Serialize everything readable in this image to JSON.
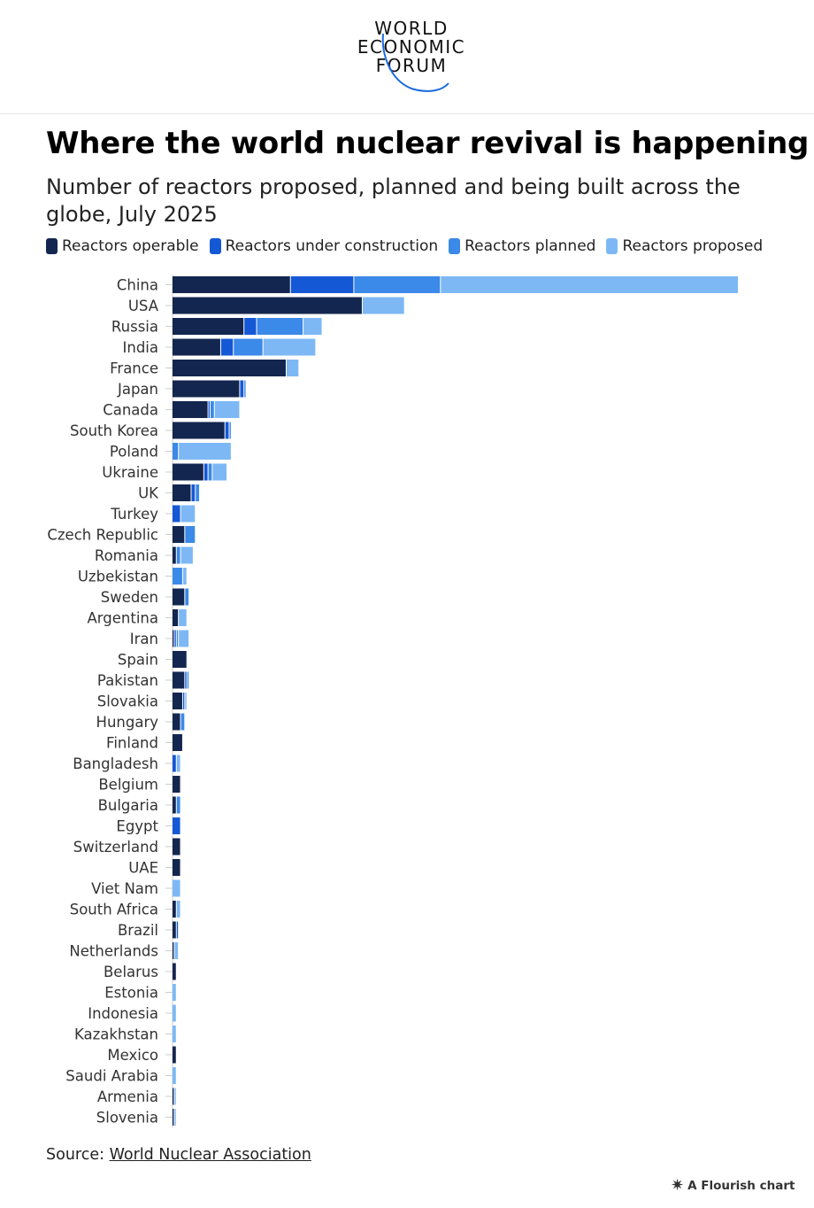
{
  "brand": {
    "line1": "WORLD",
    "line2": "ECONOMIC",
    "line3": "FORUM",
    "accent_color": "#1a6be0"
  },
  "title": "Where the world nuclear revival is happening",
  "subtitle": "Number of reactors proposed, planned and being built across the globe, July 2025",
  "source": {
    "prefix": "Source: ",
    "link_text": "World Nuclear Association"
  },
  "footer": {
    "flourish_label": "A Flourish chart"
  },
  "chart_data": {
    "type": "bar",
    "orientation": "horizontal",
    "stacked": true,
    "grid": false,
    "legend_position": "top",
    "xlim": [
      0,
      268
    ],
    "categories": [
      "China",
      "USA",
      "Russia",
      "India",
      "France",
      "Japan",
      "Canada",
      "South Korea",
      "Poland",
      "Ukraine",
      "UK",
      "Turkey",
      "Czech Republic",
      "Romania",
      "Uzbekistan",
      "Sweden",
      "Argentina",
      "Iran",
      "Spain",
      "Pakistan",
      "Slovakia",
      "Hungary",
      "Finland",
      "Bangladesh",
      "Belgium",
      "Bulgaria",
      "Egypt",
      "Switzerland",
      "UAE",
      "Viet Nam",
      "South Africa",
      "Brazil",
      "Netherlands",
      "Belarus",
      "Estonia",
      "Indonesia",
      "Kazakhstan",
      "Mexico",
      "Saudi Arabia",
      "Armenia",
      "Slovenia"
    ],
    "series": [
      {
        "name": "Reactors operable",
        "color": "#13264f",
        "values": [
          56,
          90,
          34,
          23,
          54,
          32,
          17,
          25,
          0,
          15,
          9,
          0,
          6,
          2,
          0,
          6,
          3,
          1,
          7,
          6,
          5,
          4,
          5,
          0,
          4,
          2,
          0,
          4,
          4,
          0,
          2,
          2,
          1,
          2,
          0,
          0,
          0,
          2,
          0,
          1,
          1
        ]
      },
      {
        "name": "Reactors under construction",
        "color": "#1558d6",
        "values": [
          30,
          0,
          6,
          6,
          0,
          2,
          1,
          2,
          0,
          2,
          2,
          4,
          0,
          0,
          0,
          0,
          0,
          1,
          0,
          1,
          1,
          0,
          0,
          2,
          0,
          0,
          4,
          0,
          0,
          0,
          0,
          1,
          0,
          0,
          0,
          0,
          0,
          0,
          0,
          0,
          0
        ]
      },
      {
        "name": "Reactors planned",
        "color": "#3b89e8",
        "values": [
          41,
          0,
          22,
          14,
          0,
          1,
          2,
          1,
          3,
          2,
          2,
          0,
          5,
          2,
          5,
          2,
          0,
          1,
          0,
          1,
          0,
          2,
          0,
          0,
          0,
          2,
          0,
          0,
          0,
          0,
          0,
          0,
          0,
          0,
          0,
          0,
          0,
          0,
          0,
          0,
          0
        ]
      },
      {
        "name": "Reactors proposed",
        "color": "#7db8f5",
        "values": [
          141,
          20,
          9,
          25,
          6,
          0,
          12,
          0,
          25,
          7,
          0,
          7,
          0,
          6,
          2,
          0,
          4,
          5,
          0,
          0,
          1,
          0,
          0,
          2,
          0,
          0,
          0,
          0,
          0,
          4,
          2,
          0,
          2,
          0,
          2,
          2,
          2,
          0,
          2,
          1,
          1
        ]
      }
    ]
  }
}
